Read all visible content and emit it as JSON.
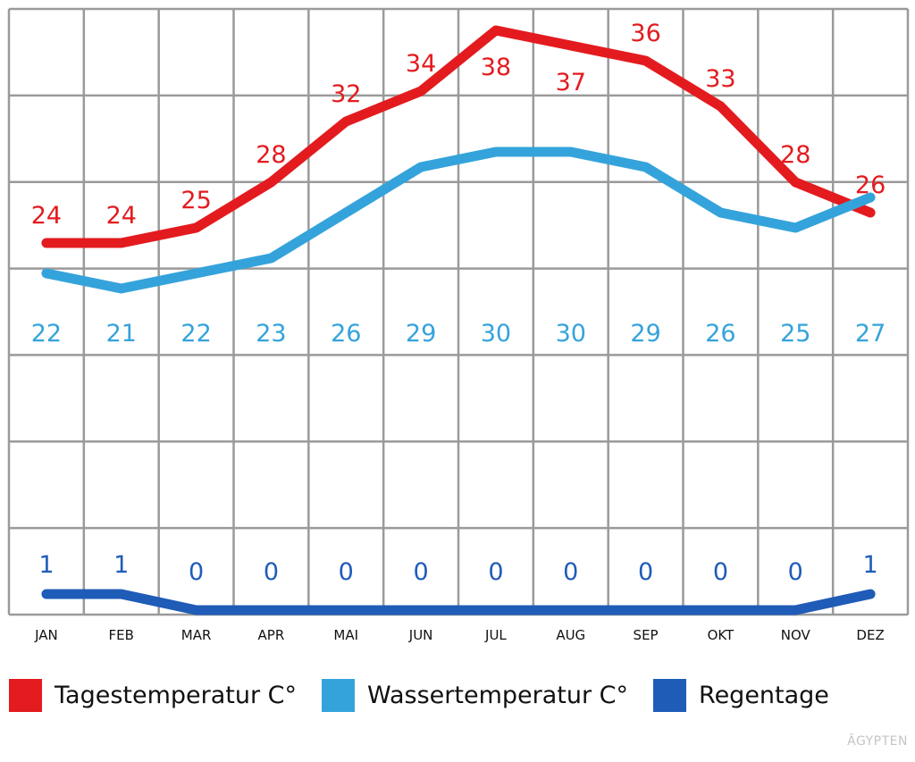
{
  "chart_data": {
    "type": "line",
    "categories": [
      "JAN",
      "FEB",
      "MAR",
      "APR",
      "MAI",
      "JUN",
      "JUL",
      "AUG",
      "SEP",
      "OKT",
      "NOV",
      "DEZ"
    ],
    "series": [
      {
        "name": "Tagestemperatur C°",
        "color": "#e31b1f",
        "values": [
          24,
          24,
          25,
          28,
          32,
          34,
          38,
          37,
          36,
          33,
          28,
          26
        ]
      },
      {
        "name": "Wassertemperatur C°",
        "color": "#35a3db",
        "values": [
          22,
          21,
          22,
          23,
          26,
          29,
          30,
          30,
          29,
          26,
          25,
          27
        ]
      },
      {
        "name": "Regentage",
        "color": "#1f5cb8",
        "values": [
          1,
          1,
          0,
          0,
          0,
          0,
          0,
          0,
          0,
          0,
          0,
          1
        ]
      }
    ],
    "grid": true,
    "legend": "bottom",
    "watermark": "ÄGYPTEN"
  }
}
